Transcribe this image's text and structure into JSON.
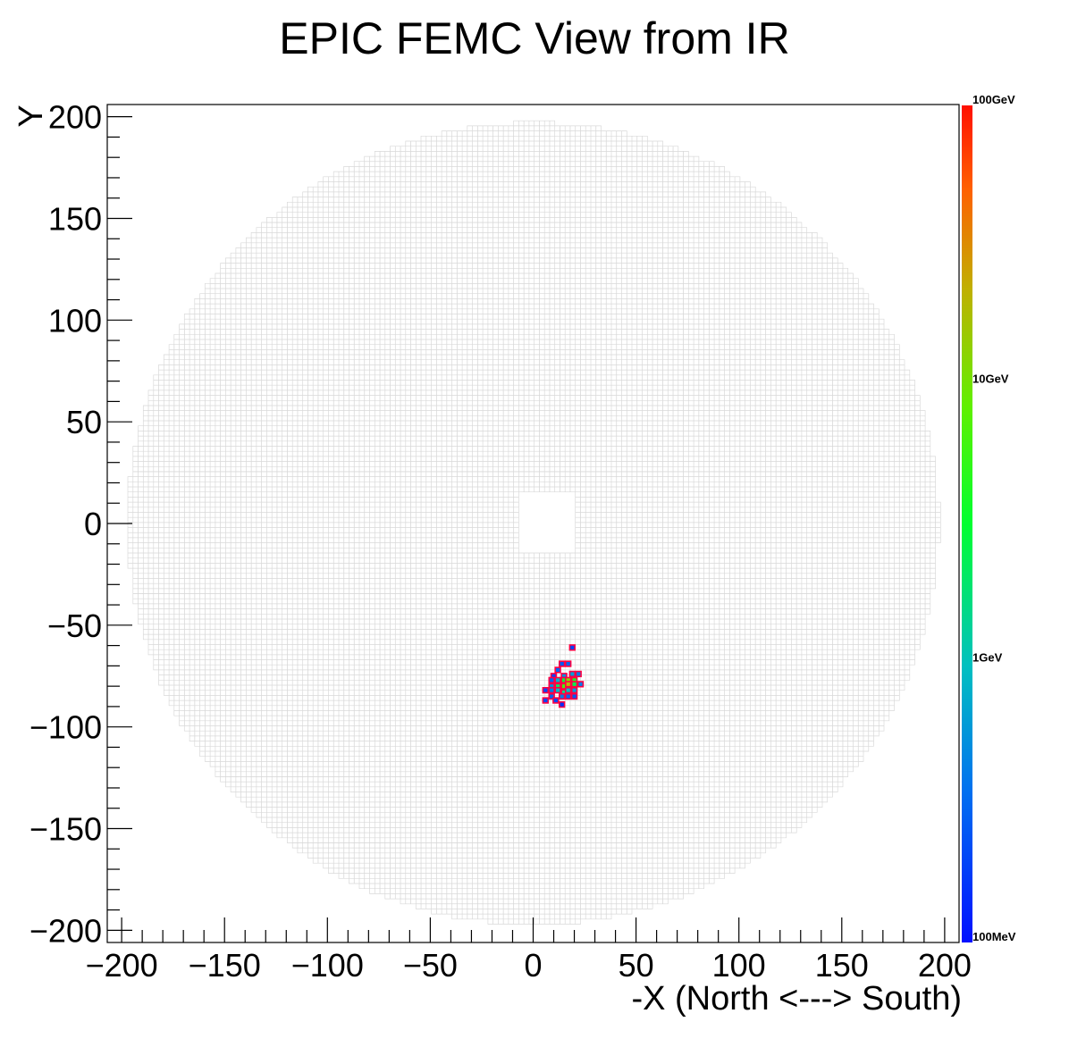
{
  "chart_data": {
    "type": "heatmap",
    "title": "EPIC FEMC View from IR",
    "xlabel": "-X (North <---> South)",
    "ylabel": "Y",
    "xlim": [
      -207,
      207
    ],
    "ylim": [
      -206,
      206
    ],
    "x_ticks": [
      -200,
      -150,
      -100,
      -50,
      0,
      50,
      100,
      150,
      200
    ],
    "x_tick_labels": [
      "−200",
      "−150",
      "−100",
      "−50",
      "0",
      "50",
      "100",
      "150",
      "200"
    ],
    "y_ticks": [
      -200,
      -150,
      -100,
      -50,
      0,
      50,
      100,
      150,
      200
    ],
    "y_tick_labels": [
      "−200",
      "−150",
      "−100",
      "−50",
      "0",
      "50",
      "100",
      "150",
      "200"
    ],
    "detector": {
      "outer_radius": 197,
      "cell_pitch": 2.5,
      "beam_hole": {
        "x_min": -8,
        "x_max": 20,
        "y_min": -15,
        "y_max": 15
      },
      "cell_color": "#d9d9d9"
    },
    "colorbar": {
      "scale": "log",
      "range_gev": [
        0.1,
        100
      ],
      "labels": [
        "100GeV",
        "10GeV",
        "1GeV",
        "100MeV"
      ],
      "label_values_gev": [
        100,
        10,
        1,
        0.1
      ]
    },
    "hits": [
      {
        "x": 19,
        "y": -61,
        "e": 0.2
      },
      {
        "x": 14,
        "y": -69,
        "e": 0.25
      },
      {
        "x": 17,
        "y": -69,
        "e": 0.3
      },
      {
        "x": 12,
        "y": -72,
        "e": 0.3
      },
      {
        "x": 10,
        "y": -75,
        "e": 0.2
      },
      {
        "x": 15,
        "y": -75,
        "e": 0.5
      },
      {
        "x": 19,
        "y": -74,
        "e": 0.6
      },
      {
        "x": 22,
        "y": -74,
        "e": 0.4
      },
      {
        "x": 9,
        "y": -77,
        "e": 0.3
      },
      {
        "x": 12,
        "y": -77,
        "e": 0.8
      },
      {
        "x": 15,
        "y": -77,
        "e": 3.0
      },
      {
        "x": 17,
        "y": -77,
        "e": 12.0
      },
      {
        "x": 20,
        "y": -77,
        "e": 4.0
      },
      {
        "x": 9,
        "y": -80,
        "e": 0.5
      },
      {
        "x": 12,
        "y": -80,
        "e": 2.0
      },
      {
        "x": 15,
        "y": -80,
        "e": 6.0
      },
      {
        "x": 17,
        "y": -79,
        "e": 20.0
      },
      {
        "x": 20,
        "y": -79,
        "e": 2.5
      },
      {
        "x": 23,
        "y": -79,
        "e": 0.4
      },
      {
        "x": 6,
        "y": -82,
        "e": 0.2
      },
      {
        "x": 9,
        "y": -82,
        "e": 0.4
      },
      {
        "x": 12,
        "y": -82,
        "e": 0.9
      },
      {
        "x": 15,
        "y": -83,
        "e": 1.5
      },
      {
        "x": 17,
        "y": -82,
        "e": 1.0
      },
      {
        "x": 20,
        "y": -82,
        "e": 0.6
      },
      {
        "x": 9,
        "y": -85,
        "e": 0.3
      },
      {
        "x": 14,
        "y": -85,
        "e": 0.4
      },
      {
        "x": 17,
        "y": -85,
        "e": 0.3
      },
      {
        "x": 20,
        "y": -85,
        "e": 0.25
      },
      {
        "x": 6,
        "y": -87,
        "e": 0.2
      },
      {
        "x": 11,
        "y": -87,
        "e": 0.2
      },
      {
        "x": 14,
        "y": -89,
        "e": 0.15
      }
    ]
  }
}
